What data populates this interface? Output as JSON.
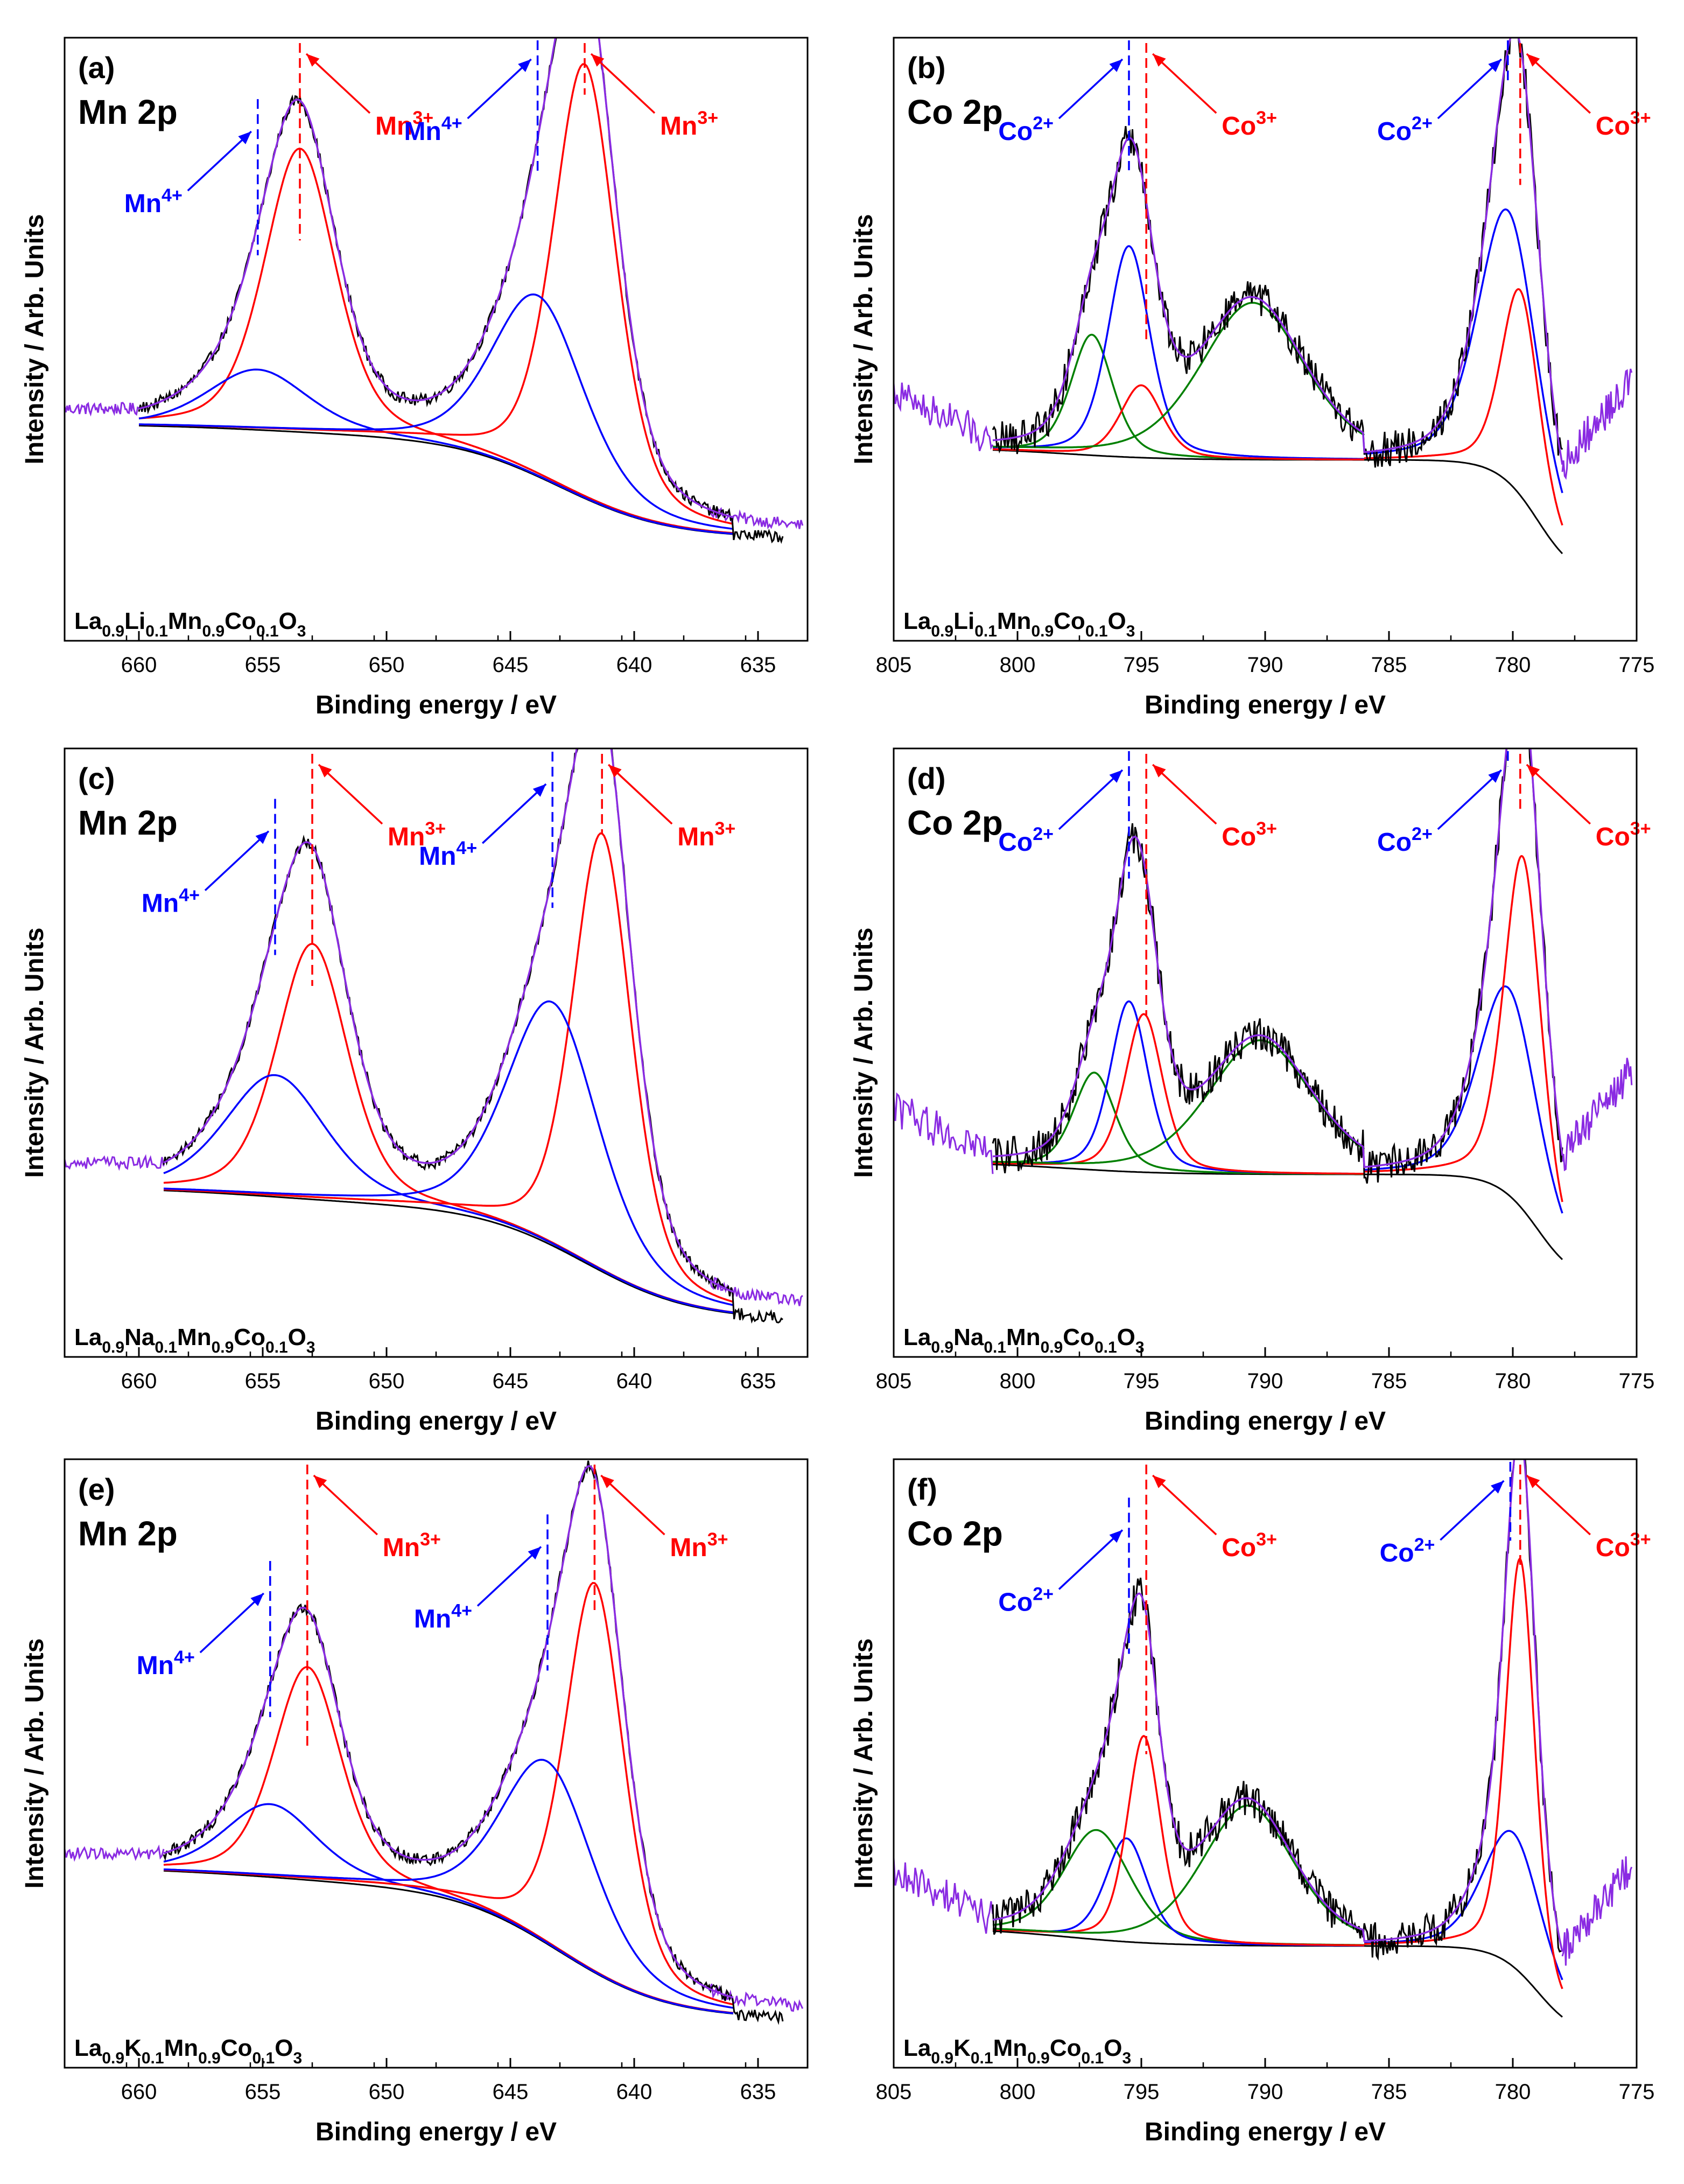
{
  "chart_data": [
    {
      "panel": "(a)",
      "title": "Mn 2p",
      "type": "line",
      "xlabel": "Binding energy / eV",
      "ylabel": "Intensity / Arb. Units",
      "xlim": [
        663,
        633
      ],
      "xticks": [
        660,
        655,
        650,
        645,
        640,
        635
      ],
      "sample": {
        "parts": [
          [
            "La",
            ""
          ],
          [
            "0.9",
            "sub"
          ],
          [
            "Li",
            ""
          ],
          [
            "0.1",
            "sub"
          ],
          [
            "Mn",
            ""
          ],
          [
            "0.9",
            "sub"
          ],
          [
            "Co",
            ""
          ],
          [
            "0.1",
            "sub"
          ],
          [
            "O",
            ""
          ],
          [
            "3",
            "sub"
          ]
        ]
      },
      "raw_range": [
        660,
        634
      ],
      "raw_noise": 0.01,
      "extend_left": [
        663,
        660
      ],
      "extend_right": [
        637,
        633.2
      ],
      "background": {
        "y0": 0.17,
        "steps": [
          {
            "c": 655,
            "a": 0.02,
            "w": 3
          },
          {
            "c": 643,
            "a": 0.17,
            "w": 2.2
          }
        ],
        "range": [
          660,
          636
        ]
      },
      "peaks": [
        {
          "color": "#ff0000",
          "center": 653.5,
          "height": 0.47,
          "hwhm": 1.7,
          "range": [
            660,
            636
          ]
        },
        {
          "color": "#0000ff",
          "center": 655.2,
          "height": 0.1,
          "hwhm": 2.4,
          "range": [
            660,
            636
          ]
        },
        {
          "color": "#ff0000",
          "center": 642.0,
          "height": 0.72,
          "hwhm": 1.5,
          "range": [
            660,
            636
          ]
        },
        {
          "color": "#0000ff",
          "center": 643.9,
          "height": 0.3,
          "hwhm": 2.2,
          "range": [
            660,
            636
          ]
        }
      ],
      "annotations": [
        {
          "text": "Mn",
          "sup": "3+",
          "color": "#ff0000",
          "line_x": 653.5,
          "label_pos": "right"
        },
        {
          "text": "Mn",
          "sup": "4+",
          "color": "#0000ff",
          "line_x": 655.2,
          "label_pos": "left"
        },
        {
          "text": "Mn",
          "sup": "3+",
          "color": "#ff0000",
          "line_x": 642.0,
          "label_pos": "right"
        },
        {
          "text": "Mn",
          "sup": "4+",
          "color": "#0000ff",
          "line_x": 643.9,
          "label_pos": "left"
        }
      ]
    },
    {
      "panel": "(b)",
      "title": "Co 2p",
      "type": "line",
      "xlabel": "Binding energy / eV",
      "ylabel": "Intensity / Arb. Units",
      "xlim": [
        805,
        775
      ],
      "xticks": [
        805,
        800,
        795,
        790,
        785,
        780,
        775
      ],
      "sample": {
        "parts": [
          [
            "La",
            ""
          ],
          [
            "0.9",
            "sub"
          ],
          [
            "Li",
            ""
          ],
          [
            "0.1",
            "sub"
          ],
          [
            "Mn",
            ""
          ],
          [
            "0.9",
            "sub"
          ],
          [
            "Co",
            ""
          ],
          [
            "0.1",
            "sub"
          ],
          [
            "O",
            ""
          ],
          [
            "3",
            "sub"
          ]
        ]
      },
      "raw_range": [
        801,
        778
      ],
      "raw_noise": 0.03,
      "extend_left": [
        805,
        801
      ],
      "extend_right": [
        778,
        775.2
      ],
      "background": {
        "y0": 0.1,
        "steps": [
          {
            "c": 798,
            "a": 0.02,
            "w": 2
          },
          {
            "c": 779,
            "a": 0.2,
            "w": 0.8
          }
        ],
        "range": [
          801,
          778
        ]
      },
      "peaks": [
        {
          "color": "#008000",
          "center": 797.0,
          "height": 0.2,
          "hwhm": 1.0,
          "range": [
            801,
            786
          ]
        },
        {
          "color": "#0000ff",
          "center": 795.5,
          "height": 0.35,
          "hwhm": 1.0,
          "range": [
            801,
            786
          ]
        },
        {
          "color": "#ff0000",
          "center": 795.0,
          "height": 0.12,
          "hwhm": 1.0,
          "range": [
            801,
            786
          ]
        },
        {
          "color": "#008000",
          "center": 790.5,
          "height": 0.26,
          "hwhm": 2.5,
          "range": [
            801,
            786
          ]
        },
        {
          "color": "#0000ff",
          "center": 780.2,
          "height": 0.45,
          "hwhm": 1.4,
          "range": [
            786,
            778
          ]
        },
        {
          "color": "#ff0000",
          "center": 779.7,
          "height": 0.34,
          "hwhm": 0.9,
          "range": [
            786,
            778
          ]
        }
      ],
      "annotations": [
        {
          "text": "Co",
          "sup": "2+",
          "color": "#0000ff",
          "line_x": 795.5,
          "label_pos": "left"
        },
        {
          "text": "Co",
          "sup": "3+",
          "color": "#ff0000",
          "line_x": 794.8,
          "label_pos": "right"
        },
        {
          "text": "Co",
          "sup": "2+",
          "color": "#0000ff",
          "line_x": 780.2,
          "label_pos": "left"
        },
        {
          "text": "Co",
          "sup": "3+",
          "color": "#ff0000",
          "line_x": 779.7,
          "label_pos": "right"
        }
      ]
    },
    {
      "panel": "(c)",
      "title": "Mn 2p",
      "type": "line",
      "xlabel": "Binding energy / eV",
      "ylabel": "Intensity / Arb. Units",
      "xlim": [
        663,
        633
      ],
      "xticks": [
        660,
        655,
        650,
        645,
        640,
        635
      ],
      "sample": {
        "parts": [
          [
            "La",
            ""
          ],
          [
            "0.9",
            "sub"
          ],
          [
            "Na",
            ""
          ],
          [
            "0.1",
            "sub"
          ],
          [
            "Mn",
            ""
          ],
          [
            "0.9",
            "sub"
          ],
          [
            "Co",
            ""
          ],
          [
            "0.1",
            "sub"
          ],
          [
            "O",
            ""
          ],
          [
            "3",
            "sub"
          ]
        ]
      },
      "raw_range": [
        659,
        634
      ],
      "raw_noise": 0.01,
      "extend_left": [
        663,
        659
      ],
      "extend_right": [
        637,
        633.2
      ],
      "background": {
        "y0": 0.06,
        "steps": [
          {
            "c": 655,
            "a": 0.03,
            "w": 3
          },
          {
            "c": 642,
            "a": 0.19,
            "w": 2.2
          }
        ],
        "range": [
          659,
          636
        ]
      },
      "peaks": [
        {
          "color": "#ff0000",
          "center": 653.0,
          "height": 0.42,
          "hwhm": 1.7,
          "range": [
            659,
            636
          ]
        },
        {
          "color": "#0000ff",
          "center": 654.5,
          "height": 0.2,
          "hwhm": 2.4,
          "range": [
            659,
            636
          ]
        },
        {
          "color": "#ff0000",
          "center": 641.3,
          "height": 0.72,
          "hwhm": 1.4,
          "range": [
            659,
            636
          ]
        },
        {
          "color": "#0000ff",
          "center": 643.3,
          "height": 0.4,
          "hwhm": 2.2,
          "range": [
            659,
            636
          ]
        }
      ],
      "annotations": [
        {
          "text": "Mn",
          "sup": "3+",
          "color": "#ff0000",
          "line_x": 653.0,
          "label_pos": "right"
        },
        {
          "text": "Mn",
          "sup": "4+",
          "color": "#0000ff",
          "line_x": 654.5,
          "label_pos": "left"
        },
        {
          "text": "Mn",
          "sup": "3+",
          "color": "#ff0000",
          "line_x": 641.3,
          "label_pos": "right"
        },
        {
          "text": "Mn",
          "sup": "4+",
          "color": "#0000ff",
          "line_x": 643.3,
          "label_pos": "left"
        }
      ]
    },
    {
      "panel": "(d)",
      "title": "Co 2p",
      "type": "line",
      "xlabel": "Binding energy / eV",
      "ylabel": "Intensity / Arb. Units",
      "xlim": [
        805,
        775
      ],
      "xticks": [
        805,
        800,
        795,
        790,
        785,
        780,
        775
      ],
      "sample": {
        "parts": [
          [
            "La",
            ""
          ],
          [
            "0.9",
            "sub"
          ],
          [
            "Na",
            ""
          ],
          [
            "0.1",
            "sub"
          ],
          [
            "Mn",
            ""
          ],
          [
            "0.9",
            "sub"
          ],
          [
            "Co",
            ""
          ],
          [
            "0.1",
            "sub"
          ],
          [
            "O",
            ""
          ],
          [
            "3",
            "sub"
          ]
        ]
      },
      "raw_range": [
        801,
        778
      ],
      "raw_noise": 0.03,
      "extend_left": [
        805,
        801
      ],
      "extend_right": [
        778,
        775.2
      ],
      "background": {
        "y0": 0.12,
        "steps": [
          {
            "c": 798,
            "a": 0.02,
            "w": 2
          },
          {
            "c": 779,
            "a": 0.18,
            "w": 0.8
          }
        ],
        "range": [
          801,
          778
        ]
      },
      "peaks": [
        {
          "color": "#008000",
          "center": 796.9,
          "height": 0.16,
          "hwhm": 1.0,
          "range": [
            801,
            786
          ]
        },
        {
          "color": "#0000ff",
          "center": 795.5,
          "height": 0.28,
          "hwhm": 0.9,
          "range": [
            801,
            786
          ]
        },
        {
          "color": "#ff0000",
          "center": 794.9,
          "height": 0.26,
          "hwhm": 0.9,
          "range": [
            801,
            786
          ]
        },
        {
          "color": "#008000",
          "center": 790.2,
          "height": 0.22,
          "hwhm": 2.5,
          "range": [
            801,
            786
          ]
        },
        {
          "color": "#0000ff",
          "center": 780.2,
          "height": 0.34,
          "hwhm": 1.4,
          "range": [
            786,
            778
          ]
        },
        {
          "color": "#ff0000",
          "center": 779.6,
          "height": 0.58,
          "hwhm": 0.9,
          "range": [
            786,
            778
          ]
        }
      ],
      "annotations": [
        {
          "text": "Co",
          "sup": "2+",
          "color": "#0000ff",
          "line_x": 795.5,
          "label_pos": "left"
        },
        {
          "text": "Co",
          "sup": "3+",
          "color": "#ff0000",
          "line_x": 794.8,
          "label_pos": "right"
        },
        {
          "text": "Co",
          "sup": "2+",
          "color": "#0000ff",
          "line_x": 780.2,
          "label_pos": "left"
        },
        {
          "text": "Co",
          "sup": "3+",
          "color": "#ff0000",
          "line_x": 779.7,
          "label_pos": "right"
        }
      ]
    },
    {
      "panel": "(e)",
      "title": "Mn 2p",
      "type": "line",
      "xlabel": "Binding energy / eV",
      "ylabel": "Intensity / Arb. Units",
      "xlim": [
        663,
        633
      ],
      "xticks": [
        660,
        655,
        650,
        645,
        640,
        635
      ],
      "sample": {
        "parts": [
          [
            "La",
            ""
          ],
          [
            "0.9",
            "sub"
          ],
          [
            "K",
            ""
          ],
          [
            "0.1",
            "sub"
          ],
          [
            "Mn",
            ""
          ],
          [
            "0.9",
            "sub"
          ],
          [
            "Co",
            ""
          ],
          [
            "0.1",
            "sub"
          ],
          [
            "O",
            ""
          ],
          [
            "3",
            "sub"
          ]
        ]
      },
      "raw_range": [
        659,
        634
      ],
      "raw_noise": 0.01,
      "extend_left": [
        663,
        659
      ],
      "extend_right": [
        637,
        633.2
      ],
      "background": {
        "y0": 0.08,
        "steps": [
          {
            "c": 655,
            "a": 0.03,
            "w": 3
          },
          {
            "c": 643,
            "a": 0.22,
            "w": 2.2
          }
        ],
        "range": [
          659,
          636
        ]
      },
      "peaks": [
        {
          "color": "#ff0000",
          "center": 653.2,
          "height": 0.35,
          "hwhm": 1.6,
          "range": [
            659,
            636
          ]
        },
        {
          "color": "#0000ff",
          "center": 654.7,
          "height": 0.12,
          "hwhm": 2.2,
          "range": [
            659,
            636
          ]
        },
        {
          "color": "#ff0000",
          "center": 641.6,
          "height": 0.64,
          "hwhm": 1.4,
          "range": [
            659,
            636
          ]
        },
        {
          "color": "#0000ff",
          "center": 643.5,
          "height": 0.3,
          "hwhm": 2.2,
          "range": [
            659,
            636
          ]
        }
      ],
      "annotations": [
        {
          "text": "Mn",
          "sup": "3+",
          "color": "#ff0000",
          "line_x": 653.2,
          "label_pos": "right"
        },
        {
          "text": "Mn",
          "sup": "4+",
          "color": "#0000ff",
          "line_x": 654.7,
          "label_pos": "left"
        },
        {
          "text": "Mn",
          "sup": "3+",
          "color": "#ff0000",
          "line_x": 641.6,
          "label_pos": "right"
        },
        {
          "text": "Mn",
          "sup": "4+",
          "color": "#0000ff",
          "line_x": 643.5,
          "label_pos": "left"
        }
      ]
    },
    {
      "panel": "(f)",
      "title": "Co 2p",
      "type": "line",
      "xlabel": "Binding energy / eV",
      "ylabel": "Intensity / Arb. Units",
      "xlim": [
        805,
        775
      ],
      "xticks": [
        805,
        800,
        795,
        790,
        785,
        780,
        775
      ],
      "sample": {
        "parts": [
          [
            "La",
            ""
          ],
          [
            "0.9",
            "sub"
          ],
          [
            "K",
            ""
          ],
          [
            "0.1",
            "sub"
          ],
          [
            "Mn",
            ""
          ],
          [
            "0.9",
            "sub"
          ],
          [
            "Co",
            ""
          ],
          [
            "0.1",
            "sub"
          ],
          [
            "O",
            ""
          ],
          [
            "3",
            "sub"
          ]
        ]
      },
      "raw_range": [
        801,
        778
      ],
      "raw_noise": 0.03,
      "extend_left": [
        805,
        801
      ],
      "extend_right": [
        778,
        775.2
      ],
      "background": {
        "y0": 0.05,
        "steps": [
          {
            "c": 798,
            "a": 0.03,
            "w": 2
          },
          {
            "c": 779,
            "a": 0.15,
            "w": 0.8
          }
        ],
        "range": [
          801,
          778
        ]
      },
      "peaks": [
        {
          "color": "#008000",
          "center": 796.8,
          "height": 0.18,
          "hwhm": 1.6,
          "range": [
            801,
            786
          ]
        },
        {
          "color": "#0000ff",
          "center": 795.6,
          "height": 0.17,
          "hwhm": 1.0,
          "range": [
            801,
            786
          ]
        },
        {
          "color": "#ff0000",
          "center": 794.9,
          "height": 0.34,
          "hwhm": 0.8,
          "range": [
            801,
            786
          ]
        },
        {
          "color": "#008000",
          "center": 790.7,
          "height": 0.23,
          "hwhm": 2.2,
          "range": [
            801,
            786
          ]
        },
        {
          "color": "#0000ff",
          "center": 780.0,
          "height": 0.22,
          "hwhm": 1.4,
          "range": [
            786,
            778
          ]
        },
        {
          "color": "#ff0000",
          "center": 779.7,
          "height": 0.68,
          "hwhm": 0.7,
          "range": [
            786,
            778
          ]
        }
      ],
      "annotations": [
        {
          "text": "Co",
          "sup": "2+",
          "color": "#0000ff",
          "line_x": 795.5,
          "label_pos": "left"
        },
        {
          "text": "Co",
          "sup": "3+",
          "color": "#ff0000",
          "line_x": 794.8,
          "label_pos": "right"
        },
        {
          "text": "Co",
          "sup": "2+",
          "color": "#0000ff",
          "line_x": 780.1,
          "label_pos": "left"
        },
        {
          "text": "Co",
          "sup": "3+",
          "color": "#ff0000",
          "line_x": 779.7,
          "label_pos": "right"
        }
      ]
    }
  ],
  "colors": {
    "raw": "#000000",
    "envelope": "#8a2be2",
    "background": "#000000"
  }
}
